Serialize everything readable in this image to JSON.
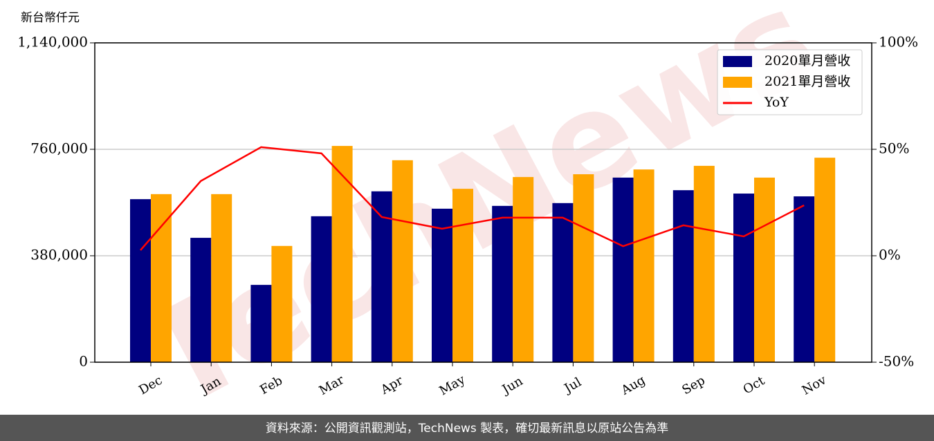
{
  "chart_data": {
    "type": "bar",
    "y_label": "新台幣仟元",
    "watermark": "TechNews",
    "footer": "資料來源：公開資訊觀測站，TechNews 製表，確切最新訊息以原站公告為準",
    "categories": [
      "Dec",
      "Jan",
      "Feb",
      "Mar",
      "Apr",
      "May",
      "Jun",
      "Jul",
      "Aug",
      "Sep",
      "Oct",
      "Nov"
    ],
    "series": [
      {
        "name": "2020單月營收",
        "color": "#000080",
        "values": [
          582000,
          444000,
          276000,
          521000,
          610000,
          548000,
          558000,
          568000,
          659000,
          614000,
          602000,
          592000
        ]
      },
      {
        "name": "2021單月營收",
        "color": "#ffa500",
        "values": [
          600000,
          600000,
          415000,
          772000,
          721000,
          619000,
          661000,
          671000,
          688000,
          701000,
          659000,
          730000
        ]
      },
      {
        "name": "YoY",
        "color": "#ff0000",
        "type": "line",
        "axis": "y2",
        "values": [
          2.6,
          35.1,
          51.0,
          48.1,
          18.2,
          12.7,
          17.9,
          17.9,
          4.5,
          14.3,
          9.1,
          23.7
        ]
      }
    ],
    "ylim": [
      0,
      1140000
    ],
    "yticks": [
      0,
      {
        "value": 380000,
        "label": "380,000"
      },
      {
        "value": 760000,
        "label": "760,000"
      },
      {
        "value": 1140000,
        "label": "1,140,000"
      }
    ],
    "y2lim": [
      -50,
      100
    ],
    "y2ticks": [
      {
        "value": -50,
        "label": "-50%"
      },
      {
        "value": 0,
        "label": "0%"
      },
      {
        "value": 50,
        "label": "50%"
      },
      {
        "value": 100,
        "label": "100%"
      }
    ],
    "grid": true,
    "legend": "upper right"
  }
}
